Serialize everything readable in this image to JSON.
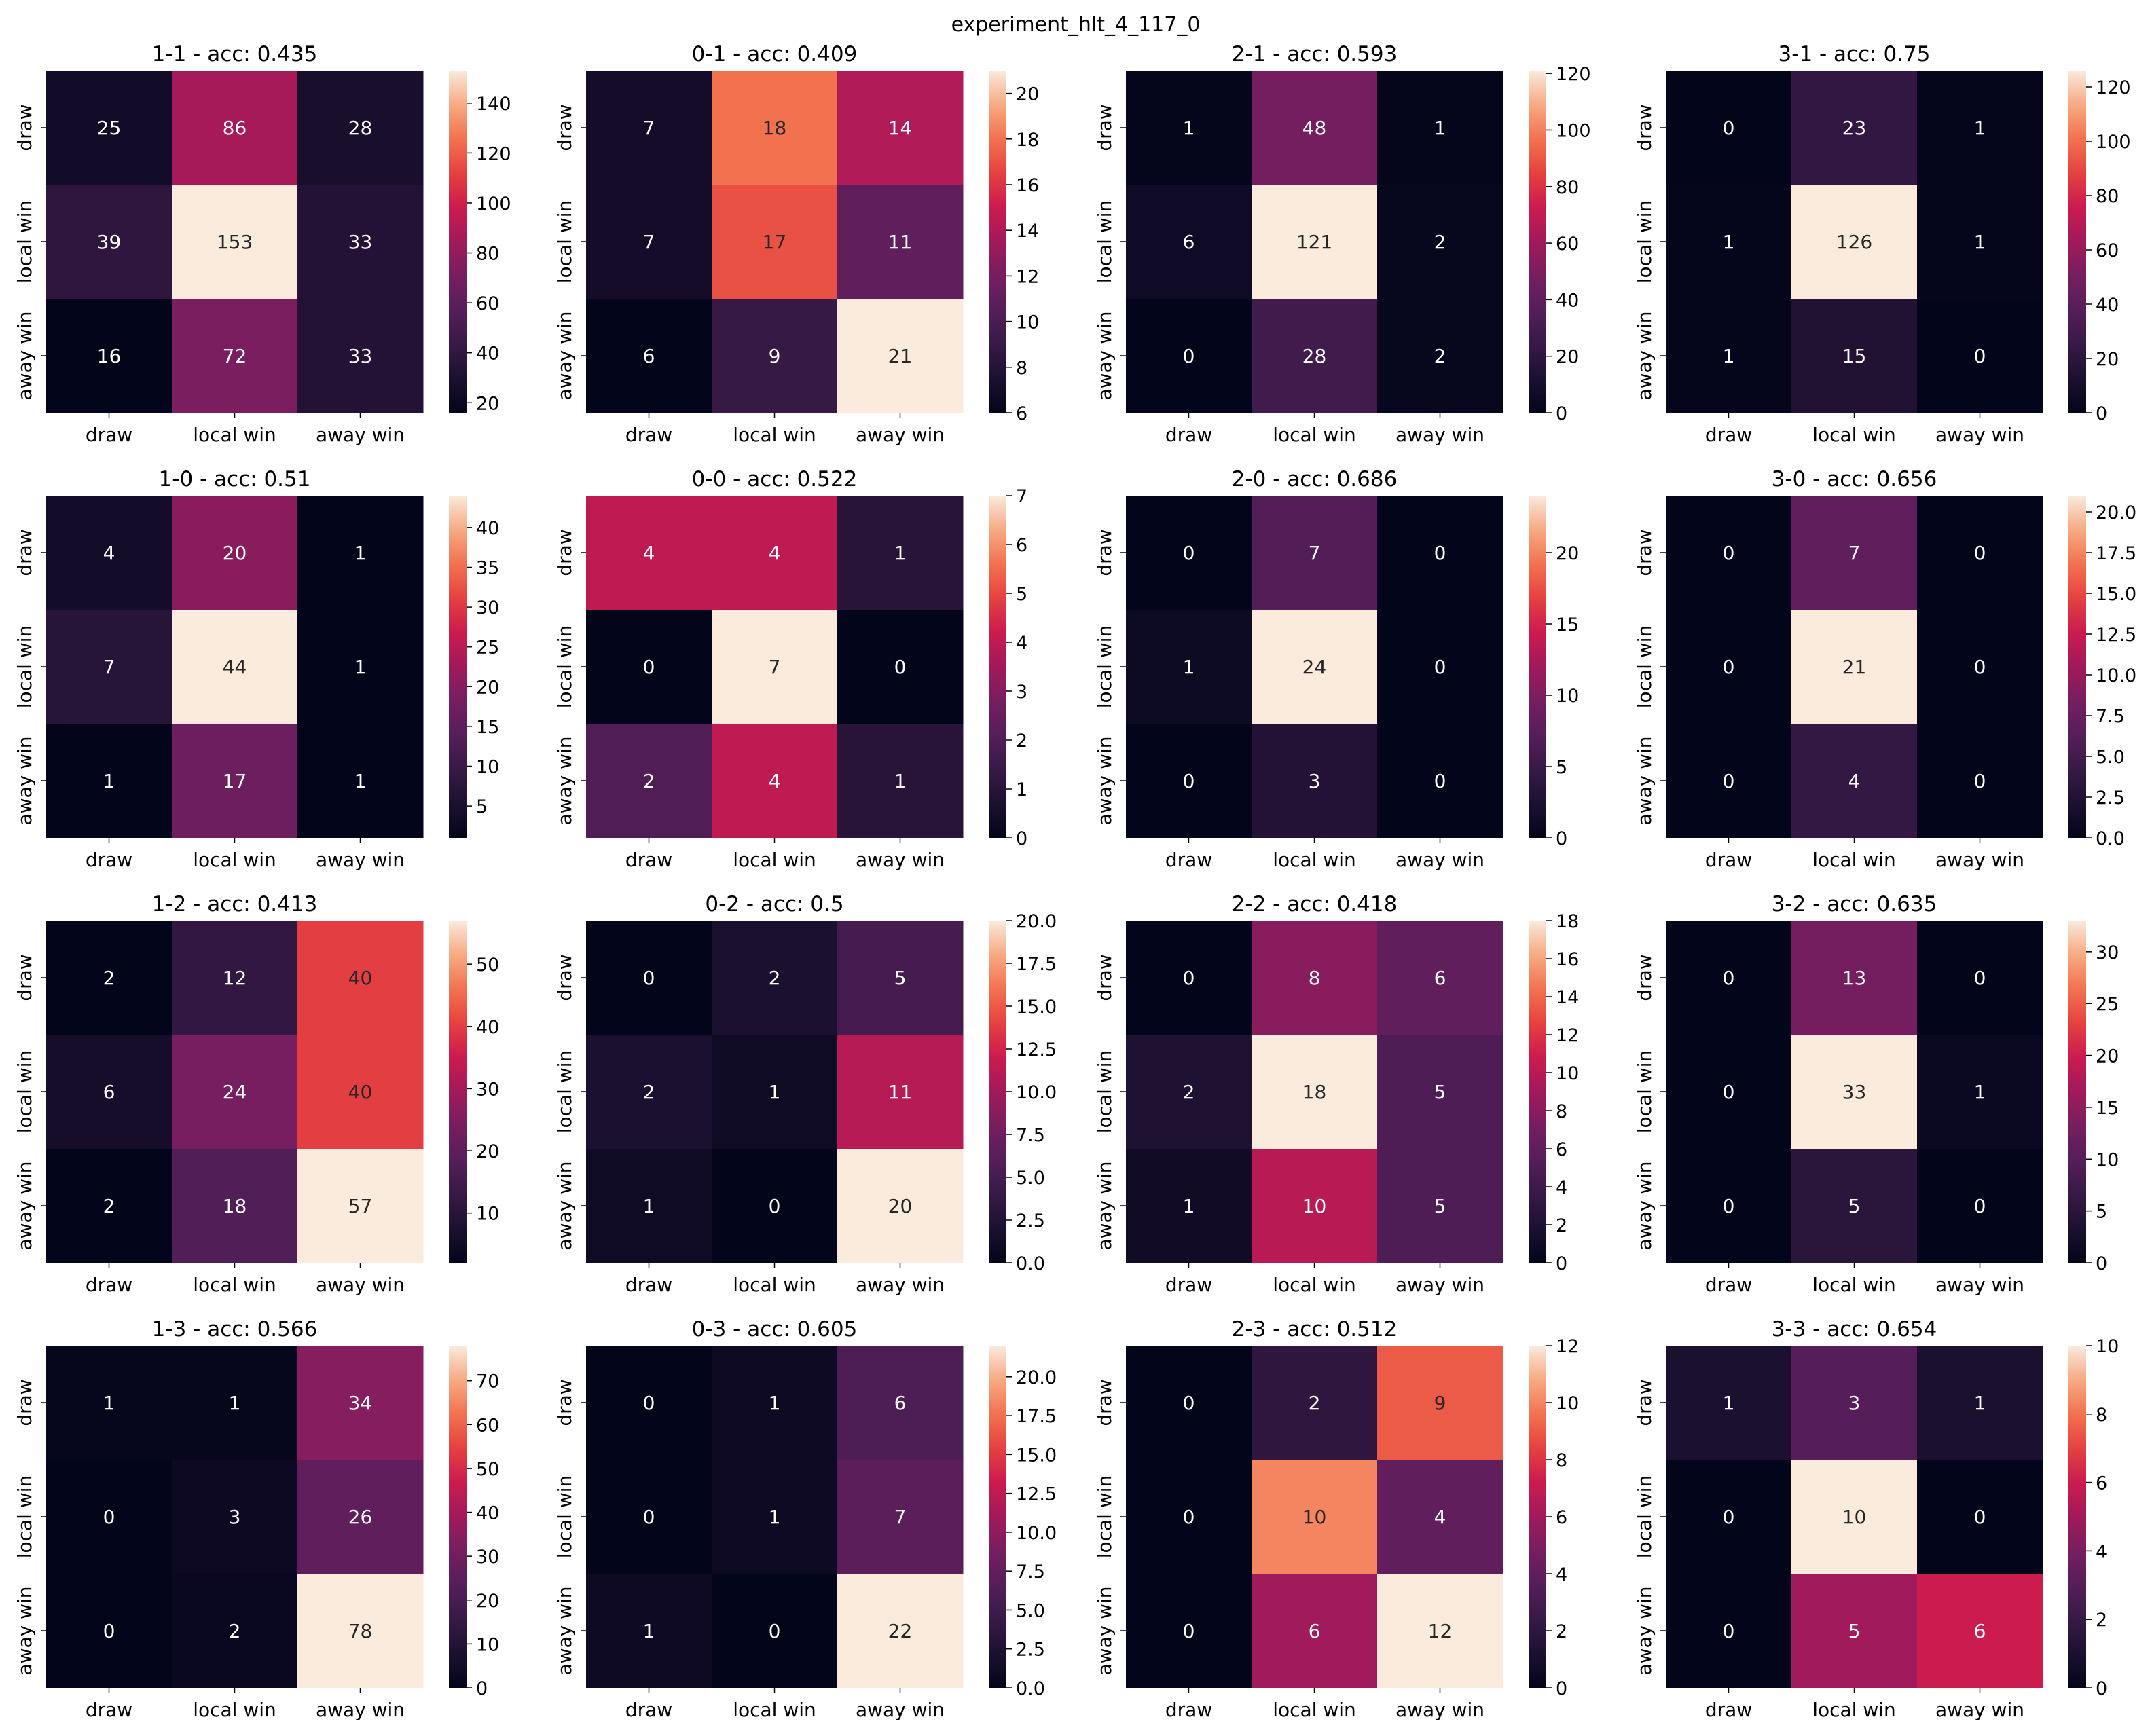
{
  "suptitle": "experiment_hlt_4_117_0",
  "labels": [
    "draw",
    "local win",
    "away win"
  ],
  "chart_data": [
    {
      "type": "heatmap",
      "title": "1-1 - acc: 0.435",
      "matrix": [
        [
          25,
          86,
          28
        ],
        [
          39,
          153,
          33
        ],
        [
          16,
          72,
          33
        ]
      ],
      "cbar_ticks": [
        20,
        40,
        60,
        80,
        100,
        120,
        140
      ]
    },
    {
      "type": "heatmap",
      "title": "0-1 - acc: 0.409",
      "matrix": [
        [
          7,
          18,
          14
        ],
        [
          7,
          17,
          11
        ],
        [
          6,
          9,
          21
        ]
      ],
      "cbar_ticks": [
        6,
        8,
        10,
        12,
        14,
        16,
        18,
        20
      ]
    },
    {
      "type": "heatmap",
      "title": "2-1 - acc: 0.593",
      "matrix": [
        [
          1,
          48,
          1
        ],
        [
          6,
          121,
          2
        ],
        [
          0,
          28,
          2
        ]
      ],
      "cbar_ticks": [
        0,
        20,
        40,
        60,
        80,
        100,
        120
      ]
    },
    {
      "type": "heatmap",
      "title": "3-1 - acc: 0.75",
      "matrix": [
        [
          0,
          23,
          1
        ],
        [
          1,
          126,
          1
        ],
        [
          1,
          15,
          0
        ]
      ],
      "cbar_ticks": [
        0,
        20,
        40,
        60,
        80,
        100,
        120
      ]
    },
    {
      "type": "heatmap",
      "title": "1-0 - acc: 0.51",
      "matrix": [
        [
          4,
          20,
          1
        ],
        [
          7,
          44,
          1
        ],
        [
          1,
          17,
          1
        ]
      ],
      "cbar_ticks": [
        5,
        10,
        15,
        20,
        25,
        30,
        35,
        40
      ]
    },
    {
      "type": "heatmap",
      "title": "0-0 - acc: 0.522",
      "matrix": [
        [
          4,
          4,
          1
        ],
        [
          0,
          7,
          0
        ],
        [
          2,
          4,
          1
        ]
      ],
      "cbar_ticks": [
        0,
        1,
        2,
        3,
        4,
        5,
        6,
        7
      ]
    },
    {
      "type": "heatmap",
      "title": "2-0 - acc: 0.686",
      "matrix": [
        [
          0,
          7,
          0
        ],
        [
          1,
          24,
          0
        ],
        [
          0,
          3,
          0
        ]
      ],
      "cbar_ticks": [
        0,
        5,
        10,
        15,
        20
      ]
    },
    {
      "type": "heatmap",
      "title": "3-0 - acc: 0.656",
      "matrix": [
        [
          0,
          7,
          0
        ],
        [
          0,
          21,
          0
        ],
        [
          0,
          4,
          0
        ]
      ],
      "cbar_ticks": [
        "0.0",
        "2.5",
        "5.0",
        "7.5",
        "10.0",
        "12.5",
        "15.0",
        "17.5",
        "20.0"
      ]
    },
    {
      "type": "heatmap",
      "title": "1-2 - acc: 0.413",
      "matrix": [
        [
          2,
          12,
          40
        ],
        [
          6,
          24,
          40
        ],
        [
          2,
          18,
          57
        ]
      ],
      "cbar_ticks": [
        10,
        20,
        30,
        40,
        50
      ]
    },
    {
      "type": "heatmap",
      "title": "0-2 - acc: 0.5",
      "matrix": [
        [
          0,
          2,
          5
        ],
        [
          2,
          1,
          11
        ],
        [
          1,
          0,
          20
        ]
      ],
      "cbar_ticks": [
        "0.0",
        "2.5",
        "5.0",
        "7.5",
        "10.0",
        "12.5",
        "15.0",
        "17.5",
        "20.0"
      ]
    },
    {
      "type": "heatmap",
      "title": "2-2 - acc: 0.418",
      "matrix": [
        [
          0,
          8,
          6
        ],
        [
          2,
          18,
          5
        ],
        [
          1,
          10,
          5
        ]
      ],
      "cbar_ticks": [
        0,
        2,
        4,
        6,
        8,
        10,
        12,
        14,
        16,
        18
      ]
    },
    {
      "type": "heatmap",
      "title": "3-2 - acc: 0.635",
      "matrix": [
        [
          0,
          13,
          0
        ],
        [
          0,
          33,
          1
        ],
        [
          0,
          5,
          0
        ]
      ],
      "cbar_ticks": [
        0,
        5,
        10,
        15,
        20,
        25,
        30
      ]
    },
    {
      "type": "heatmap",
      "title": "1-3 - acc: 0.566",
      "matrix": [
        [
          1,
          1,
          34
        ],
        [
          0,
          3,
          26
        ],
        [
          0,
          2,
          78
        ]
      ],
      "cbar_ticks": [
        0,
        10,
        20,
        30,
        40,
        50,
        60,
        70
      ]
    },
    {
      "type": "heatmap",
      "title": "0-3 - acc: 0.605",
      "matrix": [
        [
          0,
          1,
          6
        ],
        [
          0,
          1,
          7
        ],
        [
          1,
          0,
          22
        ]
      ],
      "cbar_ticks": [
        "0.0",
        "2.5",
        "5.0",
        "7.5",
        "10.0",
        "12.5",
        "15.0",
        "17.5",
        "20.0"
      ]
    },
    {
      "type": "heatmap",
      "title": "2-3 - acc: 0.512",
      "matrix": [
        [
          0,
          2,
          9
        ],
        [
          0,
          10,
          4
        ],
        [
          0,
          6,
          12
        ]
      ],
      "cbar_ticks": [
        0,
        2,
        4,
        6,
        8,
        10,
        12
      ]
    },
    {
      "type": "heatmap",
      "title": "3-3 - acc: 0.654",
      "matrix": [
        [
          1,
          3,
          1
        ],
        [
          0,
          10,
          0
        ],
        [
          0,
          5,
          6
        ]
      ],
      "cbar_ticks": [
        0,
        2,
        4,
        6,
        8,
        10
      ]
    }
  ]
}
